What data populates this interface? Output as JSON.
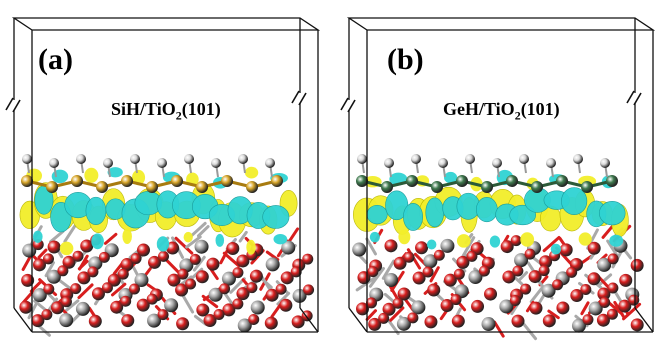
{
  "panels": [
    {
      "letter": "(a)",
      "system": {
        "prefix": "SiH/TiO",
        "subscript": "2",
        "suffix": "(101)"
      },
      "colors": {
        "adsorbate": "#d9a72a",
        "adsorbate_dark": "#a87b10"
      }
    },
    {
      "letter": "(b)",
      "system": {
        "prefix": "GeH/TiO",
        "subscript": "2",
        "suffix": "(101)"
      },
      "colors": {
        "adsorbate": "#3f7a4e",
        "adsorbate_dark": "#2c5a38"
      }
    }
  ],
  "colors": {
    "hydrogen": "#d9d9d9",
    "oxygen": "#d81e1e",
    "titanium": "#a9a9a9",
    "charge_accumulation": "#f2ee2a",
    "charge_depletion": "#2fd3d3",
    "cell_edge": "#111111"
  }
}
